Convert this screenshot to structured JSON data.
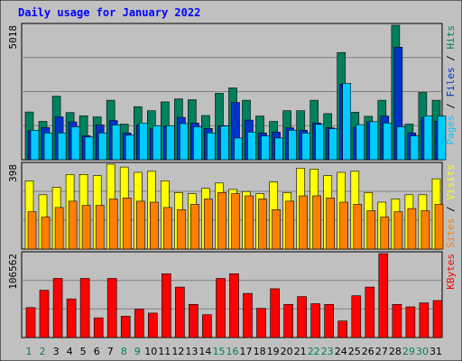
{
  "chart_data": {
    "type": "bar",
    "title": "Daily usage for January 2022",
    "categories": [
      "1",
      "2",
      "3",
      "4",
      "5",
      "6",
      "7",
      "8",
      "9",
      "10",
      "11",
      "12",
      "13",
      "14",
      "15",
      "16",
      "17",
      "18",
      "19",
      "20",
      "21",
      "22",
      "23",
      "24",
      "25",
      "26",
      "27",
      "28",
      "29",
      "30",
      "31"
    ],
    "weekend_days": [
      "1",
      "2",
      "8",
      "9",
      "15",
      "16",
      "22",
      "23",
      "29",
      "30"
    ],
    "panels": [
      {
        "id": "hits-panel",
        "max_label": "5018",
        "ymax": 5018,
        "axis_label_parts": [
          {
            "text": "Pages",
            "color": "#00ccff"
          },
          {
            "text": " / ",
            "color": "#000000"
          },
          {
            "text": "Files",
            "color": "#0033cc"
          },
          {
            "text": " / ",
            "color": "#000000"
          },
          {
            "text": "Hits",
            "color": "#00805c"
          }
        ],
        "series": [
          {
            "name": "Hits",
            "color": "#00805c",
            "values": [
              1780,
              1430,
              2370,
              1760,
              1640,
              1600,
              2220,
              1330,
              1980,
              1830,
              2160,
              2270,
              2240,
              1650,
              2480,
              2680,
              2220,
              1630,
              1430,
              1830,
              1830,
              2220,
              1720,
              4000,
              1770,
              1620,
              2220,
              5018,
              1330,
              2510,
              2220
            ]
          },
          {
            "name": "Files",
            "color": "#0033cc",
            "values": [
              1080,
              1200,
              1600,
              1410,
              900,
              1300,
              1460,
              1000,
              1290,
              1160,
              1250,
              1580,
              1370,
              1170,
              1270,
              2140,
              1480,
              1000,
              1030,
              1190,
              1100,
              1370,
              1190,
              2820,
              1210,
              1420,
              1630,
              4200,
              1000,
              1570,
              1430
            ]
          },
          {
            "name": "Pages",
            "color": "#00ccff",
            "values": [
              1100,
              1000,
              1000,
              1230,
              850,
              1000,
              1300,
              920,
              1370,
              1270,
              1270,
              1350,
              1230,
              1000,
              1260,
              810,
              1030,
              890,
              810,
              1100,
              1000,
              1320,
              1160,
              2850,
              1310,
              1420,
              1370,
              1230,
              890,
              1640,
              1630
            ]
          }
        ]
      },
      {
        "id": "visits-panel",
        "max_label": "398",
        "ymax": 398,
        "axis_label_parts": [
          {
            "text": "Sites",
            "color": "#ff8000"
          },
          {
            "text": " / ",
            "color": "#000000"
          },
          {
            "text": "Visits",
            "color": "#ffff00"
          }
        ],
        "series": [
          {
            "name": "Visits",
            "color": "#ffff00",
            "values": [
              320,
              255,
              290,
              350,
              350,
              345,
              398,
              385,
              360,
              365,
              320,
              265,
              260,
              285,
              310,
              280,
              270,
              260,
              315,
              265,
              380,
              375,
              345,
              360,
              365,
              265,
              220,
              235,
              255,
              255,
              330
            ]
          },
          {
            "name": "Sites",
            "color": "#ff8000",
            "values": [
              175,
              150,
              195,
              225,
              205,
              205,
              235,
              240,
              225,
              220,
              195,
              185,
              210,
              235,
              265,
              260,
              250,
              235,
              185,
              225,
              250,
              250,
              240,
              220,
              210,
              180,
              150,
              175,
              190,
              180,
              210
            ]
          }
        ]
      },
      {
        "id": "kbytes-panel",
        "max_label": "106562",
        "ymax": 106562,
        "axis_label_parts": [
          {
            "text": "KBytes",
            "color": "#ff0000"
          }
        ],
        "series": [
          {
            "name": "KBytes",
            "color": "#ff0000",
            "values": [
              38000,
              60000,
              75000,
              49000,
              75000,
              25000,
              75000,
              27000,
              36000,
              31000,
              81000,
              64000,
              42000,
              29000,
              75000,
              81000,
              56000,
              37000,
              62000,
              42000,
              52000,
              43000,
              42000,
              21000,
              53000,
              64000,
              106562,
              42000,
              39000,
              44000,
              47000
            ]
          }
        ]
      }
    ],
    "colors": {
      "background": "#c0c0c0",
      "title_color": "#0000ff",
      "weekday_label_color": "#000000",
      "weekend_label_color": "#00805c",
      "bar_outline": "#000000"
    }
  }
}
